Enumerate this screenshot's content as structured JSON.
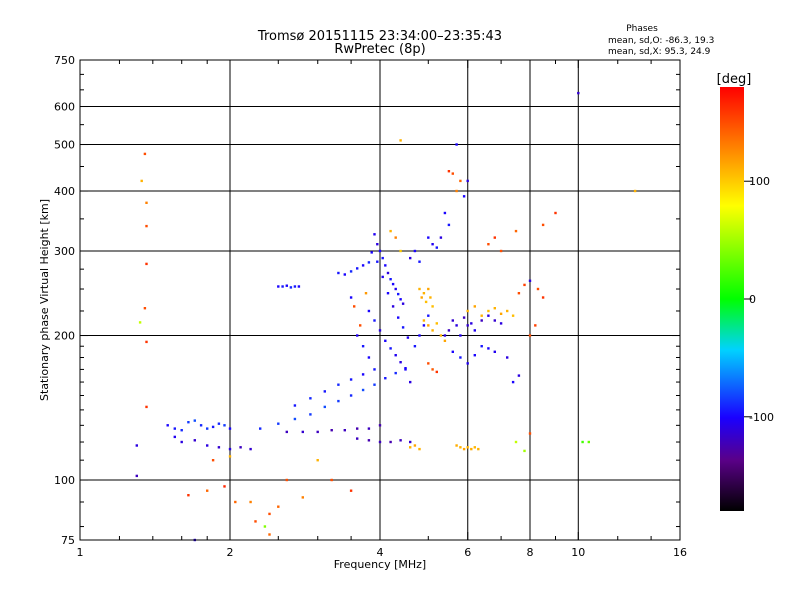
{
  "header": {
    "title_line1": "Tromsø 20151115 23:34:00–23:35:43",
    "title_line2": "RwPretec (8p)",
    "phases_heading": "Phases",
    "phases_o": "mean, sd,O: -86.3, 19.3",
    "phases_x": "mean, sd,X:  95.3, 24.9"
  },
  "colorbar": {
    "unit": "[deg]",
    "ticks": [
      {
        "value": 100,
        "label": "100"
      },
      {
        "value": 0,
        "label": "0"
      },
      {
        "value": -100,
        "label": "-100"
      }
    ],
    "range": [
      -180,
      180
    ]
  },
  "chart_data": {
    "type": "scatter",
    "title": "Tromsø 20151115 23:34:00–23:35:43",
    "subtitle": "RwPretec (8p)",
    "xlabel": "Frequency [MHz]",
    "ylabel": "Stationary phase Virtual Height [km]",
    "xscale": "log",
    "yscale": "log",
    "xlim": [
      1,
      16
    ],
    "ylim": [
      75,
      750
    ],
    "grid": true,
    "x_ticks": [
      {
        "value": 1,
        "label": "1"
      },
      {
        "value": 2,
        "label": "2"
      },
      {
        "value": 4,
        "label": "4"
      },
      {
        "value": 6,
        "label": "6"
      },
      {
        "value": 8,
        "label": "8"
      },
      {
        "value": 10,
        "label": "10"
      },
      {
        "value": 16,
        "label": "16"
      }
    ],
    "y_ticks": [
      {
        "value": 75,
        "label": "75"
      },
      {
        "value": 100,
        "label": "100"
      },
      {
        "value": 200,
        "label": "200"
      },
      {
        "value": 300,
        "label": "300"
      },
      {
        "value": 400,
        "label": "400"
      },
      {
        "value": 500,
        "label": "500"
      },
      {
        "value": 600,
        "label": "600"
      },
      {
        "value": 750,
        "label": "750"
      }
    ],
    "x_grid": [
      2,
      4,
      6,
      8,
      10
    ],
    "y_grid": [
      100,
      200,
      300,
      400,
      500,
      600
    ],
    "color_scale_deg": [
      -180,
      180
    ],
    "points": [
      [
        1.3,
        118,
        -110
      ],
      [
        1.3,
        102,
        -120
      ],
      [
        1.35,
        478,
        150
      ],
      [
        1.33,
        420,
        110
      ],
      [
        1.36,
        378,
        130
      ],
      [
        1.36,
        338,
        150
      ],
      [
        1.36,
        282,
        160
      ],
      [
        1.35,
        228,
        150
      ],
      [
        1.32,
        213,
        60
      ],
      [
        1.36,
        194,
        160
      ],
      [
        1.36,
        142,
        160
      ],
      [
        1.5,
        130,
        -100
      ],
      [
        1.55,
        128,
        -95
      ],
      [
        1.6,
        127,
        -90
      ],
      [
        1.65,
        132,
        -85
      ],
      [
        1.7,
        133,
        -80
      ],
      [
        1.75,
        130,
        -90
      ],
      [
        1.8,
        128,
        -85
      ],
      [
        1.85,
        129,
        -95
      ],
      [
        1.9,
        131,
        -90
      ],
      [
        1.95,
        130,
        -85
      ],
      [
        2.0,
        128,
        -100
      ],
      [
        1.55,
        123,
        -105
      ],
      [
        1.6,
        120,
        -110
      ],
      [
        1.7,
        121,
        -115
      ],
      [
        1.8,
        118,
        -110
      ],
      [
        1.9,
        117,
        -115
      ],
      [
        2.0,
        116,
        -110
      ],
      [
        2.1,
        117,
        -120
      ],
      [
        2.2,
        116,
        -115
      ],
      [
        1.65,
        93,
        160
      ],
      [
        1.8,
        95,
        140
      ],
      [
        1.95,
        97,
        165
      ],
      [
        2.05,
        90,
        140
      ],
      [
        2.2,
        90,
        130
      ],
      [
        2.25,
        82,
        150
      ],
      [
        2.35,
        80,
        40
      ],
      [
        2.4,
        77,
        140
      ],
      [
        1.7,
        75,
        -110
      ],
      [
        1.85,
        110,
        150
      ],
      [
        2.0,
        112,
        110
      ],
      [
        2.3,
        128,
        -90
      ],
      [
        2.5,
        131,
        -85
      ],
      [
        2.7,
        134,
        -80
      ],
      [
        2.9,
        137,
        -85
      ],
      [
        3.1,
        142,
        -80
      ],
      [
        3.3,
        146,
        -85
      ],
      [
        3.5,
        150,
        -90
      ],
      [
        3.7,
        154,
        -80
      ],
      [
        3.9,
        158,
        -85
      ],
      [
        4.1,
        163,
        -95
      ],
      [
        4.3,
        167,
        -90
      ],
      [
        4.5,
        171,
        -100
      ],
      [
        2.6,
        126,
        -120
      ],
      [
        2.8,
        126,
        -115
      ],
      [
        3.0,
        126,
        -120
      ],
      [
        3.2,
        127,
        -125
      ],
      [
        3.4,
        127,
        -120
      ],
      [
        3.6,
        128,
        -125
      ],
      [
        3.8,
        128,
        -120
      ],
      [
        4.0,
        130,
        -125
      ],
      [
        2.7,
        143,
        -95
      ],
      [
        2.9,
        148,
        -90
      ],
      [
        3.1,
        153,
        -95
      ],
      [
        3.3,
        158,
        -90
      ],
      [
        3.5,
        162,
        -95
      ],
      [
        3.7,
        166,
        -100
      ],
      [
        3.9,
        170,
        -95
      ],
      [
        3.6,
        122,
        -120
      ],
      [
        3.8,
        121,
        -125
      ],
      [
        4.0,
        120,
        -120
      ],
      [
        4.2,
        120,
        -125
      ],
      [
        4.4,
        121,
        -120
      ],
      [
        4.6,
        120,
        -115
      ],
      [
        2.5,
        253,
        -100
      ],
      [
        2.55,
        253,
        -95
      ],
      [
        2.6,
        254,
        -100
      ],
      [
        2.65,
        252,
        -90
      ],
      [
        2.7,
        253,
        -95
      ],
      [
        2.75,
        253,
        -100
      ],
      [
        3.3,
        270,
        -95
      ],
      [
        3.4,
        268,
        -100
      ],
      [
        3.5,
        272,
        -90
      ],
      [
        3.6,
        276,
        -95
      ],
      [
        3.7,
        280,
        -100
      ],
      [
        3.8,
        284,
        -90
      ],
      [
        3.9,
        325,
        -105
      ],
      [
        3.95,
        310,
        -110
      ],
      [
        4.0,
        300,
        -100
      ],
      [
        4.05,
        290,
        -95
      ],
      [
        4.1,
        280,
        -100
      ],
      [
        4.15,
        270,
        -110
      ],
      [
        4.2,
        262,
        -95
      ],
      [
        4.25,
        256,
        -100
      ],
      [
        4.3,
        250,
        -105
      ],
      [
        4.35,
        244,
        -95
      ],
      [
        4.4,
        238,
        -100
      ],
      [
        4.45,
        233,
        -110
      ],
      [
        3.85,
        298,
        -100
      ],
      [
        3.95,
        285,
        -95
      ],
      [
        4.05,
        265,
        -105
      ],
      [
        4.15,
        245,
        -100
      ],
      [
        4.25,
        230,
        -110
      ],
      [
        4.35,
        218,
        -100
      ],
      [
        4.45,
        208,
        -95
      ],
      [
        4.55,
        198,
        -105
      ],
      [
        3.8,
        225,
        -100
      ],
      [
        3.9,
        215,
        -95
      ],
      [
        4.0,
        205,
        -110
      ],
      [
        4.1,
        195,
        -100
      ],
      [
        4.2,
        188,
        -95
      ],
      [
        4.3,
        182,
        -105
      ],
      [
        4.4,
        176,
        -110
      ],
      [
        4.5,
        170,
        -100
      ],
      [
        3.6,
        200,
        -105
      ],
      [
        3.7,
        190,
        -95
      ],
      [
        3.8,
        180,
        -100
      ],
      [
        4.6,
        160,
        -110
      ],
      [
        4.7,
        190,
        -95
      ],
      [
        4.8,
        200,
        -100
      ],
      [
        4.9,
        210,
        -100
      ],
      [
        5.0,
        220,
        -95
      ],
      [
        3.5,
        240,
        -100
      ],
      [
        3.55,
        230,
        150
      ],
      [
        3.65,
        210,
        150
      ],
      [
        3.75,
        245,
        120
      ],
      [
        4.2,
        330,
        110
      ],
      [
        4.3,
        320,
        130
      ],
      [
        4.4,
        300,
        100
      ],
      [
        4.6,
        290,
        -110
      ],
      [
        4.7,
        300,
        -100
      ],
      [
        4.8,
        285,
        -95
      ],
      [
        5.0,
        320,
        -100
      ],
      [
        5.1,
        310,
        -105
      ],
      [
        5.2,
        305,
        -95
      ],
      [
        5.3,
        320,
        -110
      ],
      [
        5.4,
        360,
        -100
      ],
      [
        5.5,
        340,
        -95
      ],
      [
        5.4,
        200,
        -110
      ],
      [
        5.5,
        205,
        -120
      ],
      [
        5.6,
        215,
        -115
      ],
      [
        5.7,
        210,
        -110
      ],
      [
        5.8,
        200,
        -105
      ],
      [
        5.9,
        218,
        -120
      ],
      [
        6.0,
        210,
        -115
      ],
      [
        6.1,
        212,
        -110
      ],
      [
        6.2,
        205,
        -105
      ],
      [
        6.4,
        215,
        -120
      ],
      [
        6.6,
        220,
        -110
      ],
      [
        6.8,
        215,
        -115
      ],
      [
        7.0,
        212,
        -110
      ],
      [
        5.6,
        185,
        -100
      ],
      [
        5.8,
        180,
        -95
      ],
      [
        6.0,
        175,
        -105
      ],
      [
        6.2,
        182,
        -100
      ],
      [
        6.4,
        190,
        -95
      ],
      [
        6.6,
        188,
        -100
      ],
      [
        6.8,
        185,
        -105
      ],
      [
        4.8,
        250,
        110
      ],
      [
        4.85,
        240,
        115
      ],
      [
        4.9,
        245,
        110
      ],
      [
        4.95,
        235,
        105
      ],
      [
        5.0,
        250,
        115
      ],
      [
        5.05,
        240,
        110
      ],
      [
        5.1,
        230,
        105
      ],
      [
        4.9,
        215,
        110
      ],
      [
        5.0,
        210,
        115
      ],
      [
        5.1,
        205,
        110
      ],
      [
        5.2,
        212,
        105
      ],
      [
        5.3,
        200,
        110
      ],
      [
        5.4,
        195,
        115
      ],
      [
        6.0,
        225,
        110
      ],
      [
        6.2,
        230,
        115
      ],
      [
        6.4,
        220,
        110
      ],
      [
        6.6,
        225,
        105
      ],
      [
        6.8,
        228,
        110
      ],
      [
        7.0,
        222,
        115
      ],
      [
        7.2,
        225,
        110
      ],
      [
        7.4,
        220,
        105
      ],
      [
        5.0,
        175,
        150
      ],
      [
        5.1,
        170,
        145
      ],
      [
        5.2,
        168,
        160
      ],
      [
        4.6,
        117,
        110
      ],
      [
        4.7,
        118,
        115
      ],
      [
        4.8,
        116,
        110
      ],
      [
        5.8,
        117,
        110
      ],
      [
        5.9,
        116,
        115
      ],
      [
        6.0,
        117,
        110
      ],
      [
        6.1,
        116,
        112
      ],
      [
        6.2,
        117,
        108
      ],
      [
        6.3,
        116,
        110
      ],
      [
        5.7,
        118,
        112
      ],
      [
        5.5,
        440,
        160
      ],
      [
        5.6,
        435,
        150
      ],
      [
        5.8,
        420,
        140
      ],
      [
        6.0,
        420,
        -110
      ],
      [
        5.7,
        400,
        130
      ],
      [
        5.9,
        390,
        -100
      ],
      [
        4.4,
        510,
        110
      ],
      [
        5.7,
        500,
        -100
      ],
      [
        6.6,
        310,
        150
      ],
      [
        6.8,
        320,
        160
      ],
      [
        7.0,
        300,
        150
      ],
      [
        7.5,
        330,
        140
      ],
      [
        8.5,
        340,
        150
      ],
      [
        9.0,
        360,
        160
      ],
      [
        8.0,
        260,
        -110
      ],
      [
        7.6,
        245,
        150
      ],
      [
        7.8,
        255,
        155
      ],
      [
        8.3,
        250,
        150
      ],
      [
        8.5,
        240,
        160
      ],
      [
        8.0,
        200,
        150
      ],
      [
        8.2,
        210,
        155
      ],
      [
        7.2,
        180,
        -110
      ],
      [
        7.4,
        160,
        -100
      ],
      [
        7.6,
        165,
        -110
      ],
      [
        7.5,
        120,
        60
      ],
      [
        8.0,
        125,
        150
      ],
      [
        7.8,
        115,
        50
      ],
      [
        10.2,
        120,
        20
      ],
      [
        10.5,
        120,
        30
      ],
      [
        10.0,
        640,
        -115
      ],
      [
        13.0,
        400,
        110
      ],
      [
        2.4,
        85,
        150
      ],
      [
        2.5,
        88,
        140
      ],
      [
        2.6,
        100,
        150
      ],
      [
        3.0,
        110,
        110
      ],
      [
        3.2,
        100,
        150
      ],
      [
        3.5,
        95,
        160
      ],
      [
        2.8,
        92,
        130
      ]
    ]
  }
}
